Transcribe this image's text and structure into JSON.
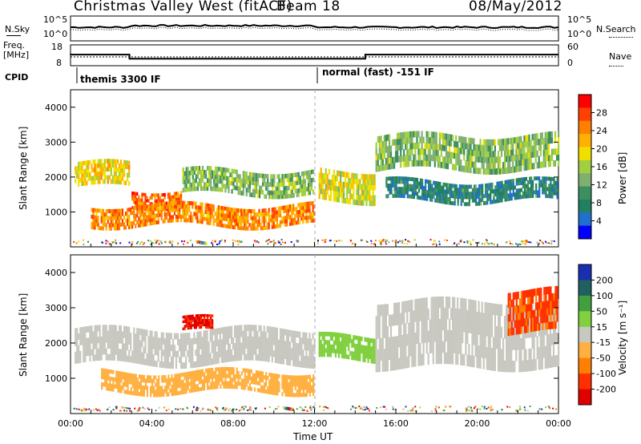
{
  "header": {
    "station": "Christmas Valley West (fitACF)",
    "beam": "Beam 18",
    "date": "08/May/2012"
  },
  "top_panels": {
    "nsky_label": "N.Sky",
    "nsky_ticks": [
      "10^5",
      "10^0"
    ],
    "nsearch_label": "N.Search",
    "nsearch_ticks": [
      "10^5",
      "10^0"
    ],
    "freq_label": "Freq.",
    "freq_unit": "[MHz]",
    "freq_ticks": [
      "18",
      "8"
    ],
    "nave_label": "Nave",
    "nave_ticks": [
      "60",
      "0"
    ],
    "cpid_label": "CPID",
    "cpid_segments": [
      "themis 3300 IF",
      "normal (fast) -151 IF"
    ]
  },
  "panels": [
    {
      "ylabel": "Slant Range [km]",
      "colorbar_label": "Power [dB]",
      "colorbar_ticks": [
        "28",
        "24",
        "20",
        "16",
        "12",
        "8",
        "4"
      ],
      "colors": [
        "#0000ff",
        "#2070d0",
        "#208060",
        "#3c9060",
        "#80b070",
        "#a0d040",
        "#f0e000",
        "#ffb000",
        "#ff8000",
        "#ff4000",
        "#ff0000"
      ]
    },
    {
      "ylabel": "Slant Range [km]",
      "colorbar_label": "Velocity [m s⁻¹]",
      "colorbar_ticks": [
        "200",
        "100",
        "50",
        "15",
        "-15",
        "-50",
        "-100",
        "-200"
      ],
      "colors": [
        "#1830b0",
        "#206060",
        "#40a040",
        "#80d040",
        "#c8c8c0",
        "#ffb040",
        "#ff8000",
        "#ff3000",
        "#e00000"
      ]
    }
  ],
  "xaxis": {
    "ticks": [
      "00:00",
      "04:00",
      "08:00",
      "12:00",
      "16:00",
      "20:00",
      "00:00"
    ],
    "label": "Time UT"
  },
  "chart_data": {
    "type": "heatmap",
    "title": "Christmas Valley West (fitACF)",
    "x_label": "Time UT",
    "x_range_hours": [
      0,
      24
    ],
    "y_label": "Slant Range [km]",
    "y_ticks": [
      1000,
      2000,
      3000,
      4000
    ],
    "y_range_km": [
      0,
      4500
    ],
    "freq_mhz_segments": [
      {
        "start_h": 0.0,
        "end_h": 2.9,
        "value": 13
      },
      {
        "start_h": 2.9,
        "end_h": 12.0,
        "value": 10
      },
      {
        "start_h": 12.0,
        "end_h": 14.5,
        "value": 10
      },
      {
        "start_h": 14.5,
        "end_h": 24.0,
        "value": 13
      }
    ],
    "power_bands_db": [
      {
        "t0": 0.2,
        "t1": 2.9,
        "r0": 1700,
        "r1": 2400,
        "value": 20
      },
      {
        "t0": 3.0,
        "t1": 5.5,
        "r0": 1150,
        "r1": 1650,
        "value": 26
      },
      {
        "t0": 5.5,
        "t1": 12.0,
        "r0": 1500,
        "r1": 2200,
        "value": 14
      },
      {
        "t0": 1.0,
        "t1": 12.0,
        "r0": 600,
        "r1": 1200,
        "value": 24
      },
      {
        "t0": 12.2,
        "t1": 15.0,
        "r0": 1300,
        "r1": 2200,
        "value": 18
      },
      {
        "t0": 15.0,
        "t1": 24.0,
        "r0": 2200,
        "r1": 3200,
        "value": 14
      },
      {
        "t0": 15.5,
        "t1": 24.0,
        "r0": 1300,
        "r1": 1900,
        "value": 8
      }
    ],
    "velocity_bands_ms": [
      {
        "t0": 0.2,
        "t1": 12.0,
        "r0": 1400,
        "r1": 2400,
        "value": 0
      },
      {
        "t0": 1.5,
        "t1": 12.0,
        "r0": 600,
        "r1": 1200,
        "value": -60
      },
      {
        "t0": 5.5,
        "t1": 7.0,
        "r0": 2300,
        "r1": 2700,
        "value": -200
      },
      {
        "t0": 12.2,
        "t1": 15.0,
        "r0": 1500,
        "r1": 2200,
        "value": 50
      },
      {
        "t0": 15.0,
        "t1": 24.0,
        "r0": 1300,
        "r1": 3200,
        "value": 0
      },
      {
        "t0": 21.5,
        "t1": 24.0,
        "r0": 2300,
        "r1": 3500,
        "value": -150
      }
    ]
  }
}
